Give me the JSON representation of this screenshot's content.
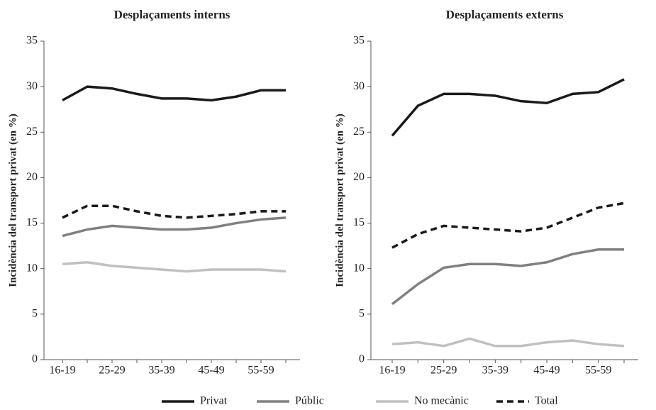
{
  "chart_data": [
    {
      "type": "line",
      "title": "Desplaçaments interns",
      "y_label": "Incidència del transport privat (en %)",
      "categories": [
        "16-19",
        null,
        "25-29",
        null,
        "35-39",
        null,
        "45-49",
        null,
        "55-59",
        null
      ],
      "ylim": [
        0,
        35
      ],
      "yticks": [
        0,
        5,
        10,
        15,
        20,
        25,
        30,
        35
      ],
      "series": [
        {
          "name": "Privat",
          "color": "#1a1a1a",
          "values": [
            28.5,
            30.0,
            29.8,
            29.2,
            28.7,
            28.7,
            28.5,
            28.9,
            29.6,
            29.6
          ]
        },
        {
          "name": "Públic",
          "color": "#808080",
          "values": [
            13.6,
            14.3,
            14.7,
            14.5,
            14.3,
            14.3,
            14.5,
            15.0,
            15.4,
            15.6
          ]
        },
        {
          "name": "No mecànic",
          "color": "#c0c0c0",
          "values": [
            10.5,
            10.7,
            10.3,
            10.1,
            9.9,
            9.7,
            9.9,
            9.9,
            9.9,
            9.7
          ]
        },
        {
          "name": "Total",
          "color": "#1a1a1a",
          "dashed": true,
          "values": [
            15.6,
            16.9,
            16.9,
            16.3,
            15.8,
            15.6,
            15.8,
            16.0,
            16.3,
            16.3
          ]
        }
      ]
    },
    {
      "type": "line",
      "title": "Desplaçaments externs",
      "y_label": "Incidència del transport privat (en %)",
      "categories": [
        "16-19",
        null,
        "25-29",
        null,
        "35-39",
        null,
        "45-49",
        null,
        "55-59",
        null
      ],
      "ylim": [
        0,
        35
      ],
      "yticks": [
        0,
        5,
        10,
        15,
        20,
        25,
        30,
        35
      ],
      "series": [
        {
          "name": "Privat",
          "color": "#1a1a1a",
          "values": [
            24.6,
            27.9,
            29.2,
            29.2,
            29.0,
            28.4,
            28.2,
            29.2,
            29.4,
            30.8
          ]
        },
        {
          "name": "Públic",
          "color": "#808080",
          "values": [
            6.1,
            8.3,
            10.1,
            10.5,
            10.5,
            10.3,
            10.7,
            11.6,
            12.1,
            12.1
          ]
        },
        {
          "name": "No mecànic",
          "color": "#c0c0c0",
          "values": [
            1.7,
            1.9,
            1.5,
            2.3,
            1.5,
            1.5,
            1.9,
            2.1,
            1.7,
            1.5
          ]
        },
        {
          "name": "Total",
          "color": "#1a1a1a",
          "dashed": true,
          "values": [
            12.3,
            13.8,
            14.7,
            14.5,
            14.3,
            14.1,
            14.5,
            15.6,
            16.7,
            17.2
          ]
        }
      ]
    }
  ]
}
